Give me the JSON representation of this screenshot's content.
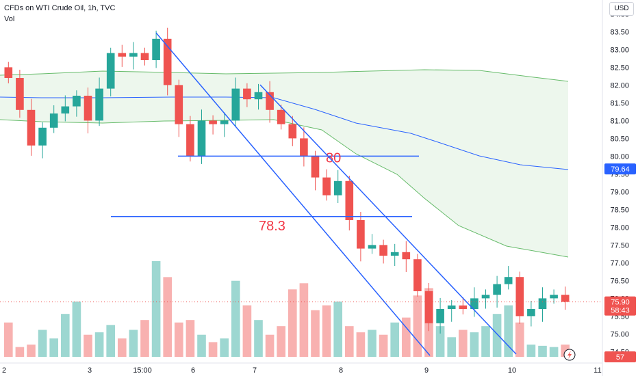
{
  "legend": {
    "title": "CFDs on WTI Crude Oil, 1h, TVC",
    "sub": "Vol"
  },
  "currency": "USD",
  "price_badges": {
    "mid_band": "79.64",
    "last_price": "75.90",
    "countdown": "58:43",
    "volume": "57"
  },
  "colors": {
    "up": "#26a69a",
    "down": "#ef5350",
    "band_outer": "#66bb6a",
    "band_mid": "#2962ff",
    "band_fill": "#e8f5e9",
    "drawing": "#2962ff",
    "annotation": "#f23645"
  },
  "chart_data": {
    "type": "candlestick",
    "ylim": [
      74.2,
      84.2
    ],
    "y_ticks": [
      74.5,
      75.0,
      75.5,
      76.0,
      76.5,
      77.0,
      77.5,
      78.0,
      78.5,
      79.0,
      79.5,
      80.0,
      80.5,
      81.0,
      81.5,
      82.0,
      82.5,
      83.0,
      83.5,
      84.0
    ],
    "x_labels": [
      "2",
      "3",
      "15:00",
      "6",
      "7",
      "8",
      "9",
      "10",
      "11"
    ],
    "candles_close": [
      82.2,
      81.3,
      80.3,
      80.8,
      81.2,
      81.4,
      81.7,
      81.0,
      81.9,
      82.9,
      82.8,
      82.9,
      82.7,
      83.3,
      82.0,
      80.9,
      80.0,
      81.0,
      80.9,
      81.0,
      81.9,
      81.6,
      81.8,
      81.3,
      80.9,
      80.5,
      80.0,
      79.4,
      78.9,
      79.3,
      78.2,
      77.4,
      77.5,
      77.2,
      77.3,
      77.1,
      76.2,
      75.3,
      75.7,
      75.8,
      75.7,
      76.0,
      76.1,
      76.4,
      76.6,
      75.5,
      75.7,
      76.0,
      76.1,
      75.9
    ],
    "volume": [
      28,
      8,
      10,
      22,
      15,
      35,
      45,
      18,
      20,
      26,
      15,
      22,
      30,
      78,
      65,
      28,
      30,
      18,
      12,
      15,
      62,
      42,
      30,
      18,
      25,
      55,
      60,
      38,
      42,
      45,
      25,
      20,
      22,
      18,
      28,
      32,
      50,
      56,
      25,
      16,
      22,
      20,
      25,
      35,
      42,
      28,
      10,
      9,
      8,
      10
    ],
    "annotations": [
      {
        "type": "horizontal_line",
        "price": 80.0,
        "label": "80"
      },
      {
        "type": "horizontal_line",
        "price": 78.3,
        "label": "78.3"
      },
      {
        "type": "parallel_channel",
        "trend": "down"
      }
    ],
    "indicators": [
      "Bollinger-style bands",
      "Volume"
    ]
  }
}
